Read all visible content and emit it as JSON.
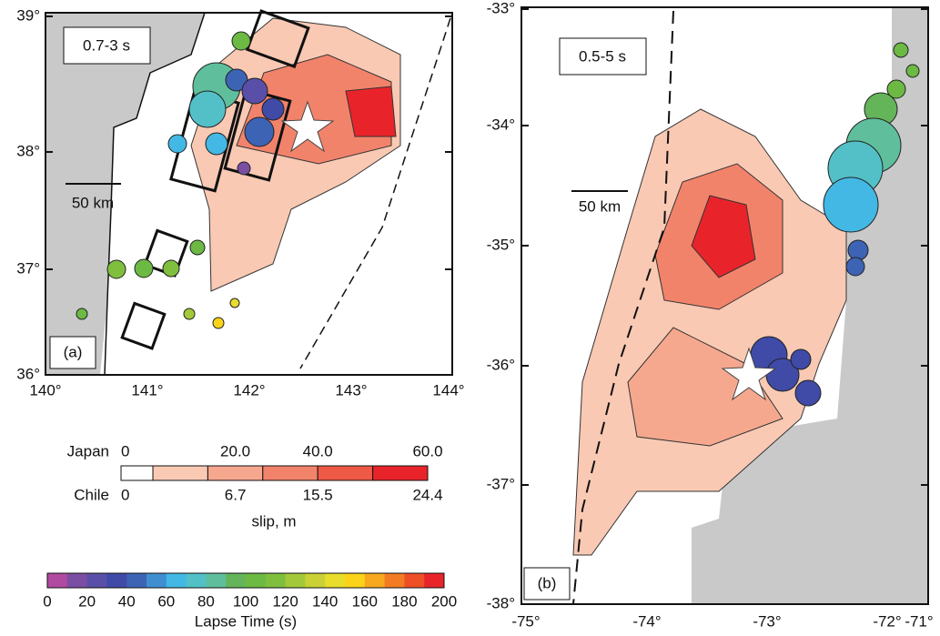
{
  "panels": [
    {
      "label": "(a)",
      "period": "0.7-3 s",
      "scale": "50 km",
      "xticks": [
        "140°",
        "141°",
        "142°",
        "143°",
        "144°"
      ],
      "yticks": [
        "39°",
        "38°",
        "37°",
        "36°"
      ]
    },
    {
      "label": "(b)",
      "period": "0.5-5 s",
      "scale": "50 km",
      "xticks": [
        "-75°",
        "-74°",
        "-73°",
        "-72°",
        "-71°"
      ],
      "yticks": [
        "-33°",
        "-34°",
        "-35°",
        "-36°",
        "-37°",
        "-38°"
      ]
    }
  ],
  "slip_legend": {
    "title": "slip, m",
    "rows": [
      {
        "name": "Japan",
        "ticks": [
          "0",
          "20.0",
          "40.0",
          "60.0"
        ]
      },
      {
        "name": "Chile",
        "ticks": [
          "0",
          "6.7",
          "15.5",
          "24.4"
        ]
      }
    ],
    "colors": [
      "#ffffff",
      "#f9c9b4",
      "#f6a88f",
      "#f2836b",
      "#ee5a45",
      "#e8242a"
    ]
  },
  "lapse_legend": {
    "title": "Lapse Time (s)",
    "ticks": [
      "0",
      "20",
      "40",
      "60",
      "80",
      "100",
      "120",
      "140",
      "160",
      "180",
      "200"
    ],
    "colors": [
      "#b04aa0",
      "#7a4ea3",
      "#5a4fa8",
      "#3f4ba6",
      "#3d63b4",
      "#3f8fd0",
      "#43b8e4",
      "#53c0c8",
      "#5fbf9c",
      "#64b55a",
      "#6cb944",
      "#7fbf3d",
      "#a3c83a",
      "#c9d134",
      "#e8dd2a",
      "#fbd318",
      "#f8a81e",
      "#f37b24",
      "#ee4f26",
      "#e8242a"
    ]
  }
}
